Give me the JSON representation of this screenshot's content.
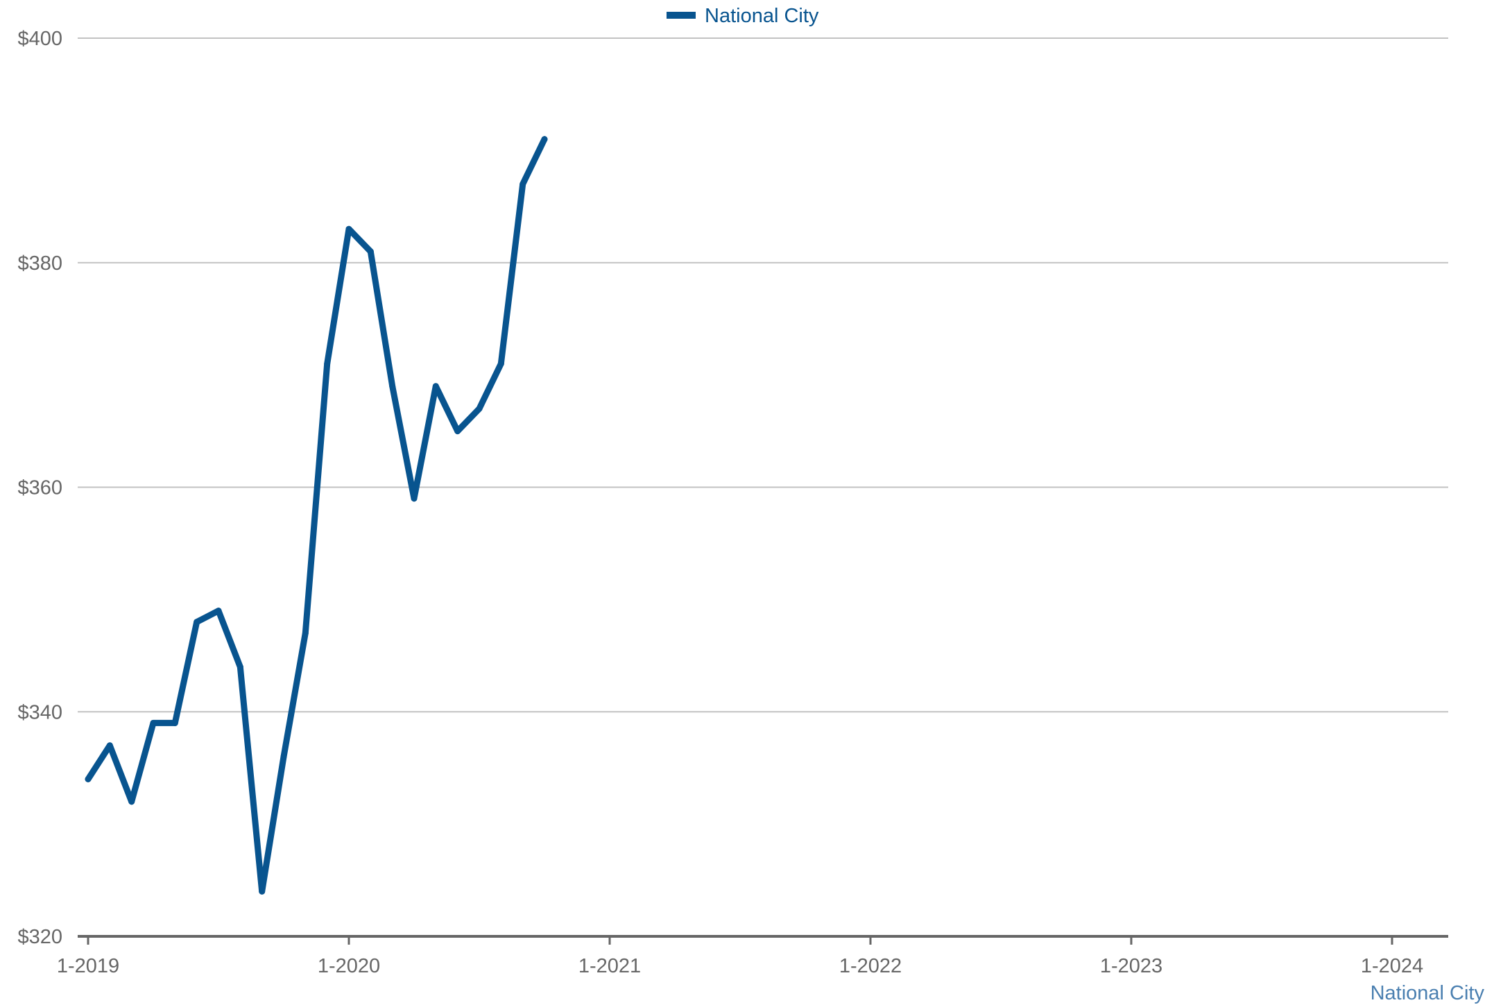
{
  "chart_data": {
    "type": "line",
    "x_axis": {
      "type": "date",
      "range": [
        "2019-01",
        "2024-03"
      ],
      "ticks": [
        {
          "value": "2019-01",
          "label": "1-2019"
        },
        {
          "value": "2020-01",
          "label": "1-2020"
        },
        {
          "value": "2021-01",
          "label": "1-2021"
        },
        {
          "value": "2022-01",
          "label": "1-2022"
        },
        {
          "value": "2023-01",
          "label": "1-2023"
        },
        {
          "value": "2024-01",
          "label": "1-2024"
        }
      ]
    },
    "y_axis": {
      "range": [
        320,
        400
      ],
      "ticks": [
        {
          "value": 320,
          "label": "$320"
        },
        {
          "value": 340,
          "label": "$340"
        },
        {
          "value": 360,
          "label": "$360"
        },
        {
          "value": 380,
          "label": "$380"
        },
        {
          "value": 400,
          "label": "$400"
        }
      ]
    },
    "grid": true,
    "legend": {
      "position": "top-center"
    },
    "series": [
      {
        "name": "National City",
        "color": "#08548f",
        "points": [
          {
            "x": "2019-01",
            "y": 334
          },
          {
            "x": "2019-02",
            "y": 337
          },
          {
            "x": "2019-03",
            "y": 332
          },
          {
            "x": "2019-04",
            "y": 339
          },
          {
            "x": "2019-05",
            "y": 339
          },
          {
            "x": "2019-06",
            "y": 348
          },
          {
            "x": "2019-07",
            "y": 349
          },
          {
            "x": "2019-08",
            "y": 344
          },
          {
            "x": "2019-09",
            "y": 324
          },
          {
            "x": "2019-10",
            "y": 336
          },
          {
            "x": "2019-11",
            "y": 347
          },
          {
            "x": "2019-12",
            "y": 371
          },
          {
            "x": "2020-01",
            "y": 383
          },
          {
            "x": "2020-02",
            "y": 381
          },
          {
            "x": "2020-03",
            "y": 369
          },
          {
            "x": "2020-04",
            "y": 359
          },
          {
            "x": "2020-05",
            "y": 369
          },
          {
            "x": "2020-06",
            "y": 365
          },
          {
            "x": "2020-07",
            "y": 367
          },
          {
            "x": "2020-08",
            "y": 371
          },
          {
            "x": "2020-09",
            "y": 387
          },
          {
            "x": "2020-10",
            "y": 391
          }
        ]
      }
    ],
    "source_label": "National City",
    "source_color": "#4a7fb0",
    "colors": {
      "grid": "#c2c2c2",
      "axis": "#666666",
      "tick_text": "#666666"
    }
  }
}
